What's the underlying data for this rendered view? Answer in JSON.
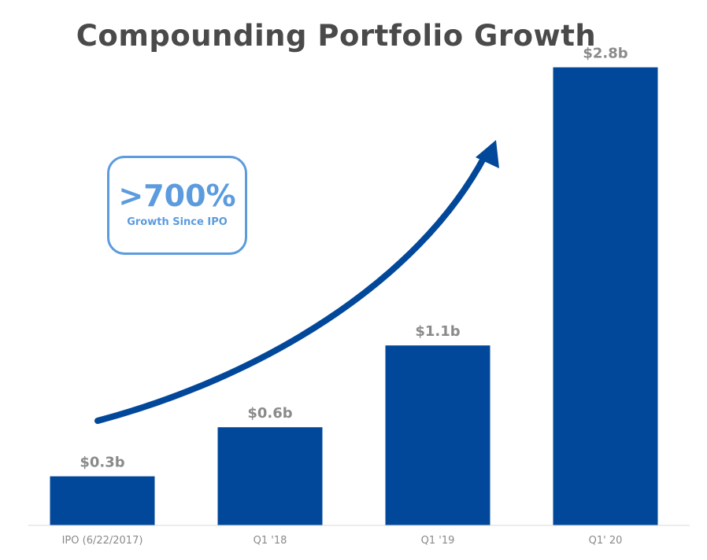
{
  "chart_data": {
    "type": "bar",
    "title": "Compounding Portfolio Growth",
    "categories": [
      "IPO (6/22/2017)",
      "Q1 '18",
      "Q1 '19",
      "Q1' 20"
    ],
    "values": [
      0.3,
      0.6,
      1.1,
      2.8
    ],
    "value_labels": [
      "$0.3b",
      "$0.6b",
      "$1.1b",
      "$2.8b"
    ],
    "ylim": [
      0,
      3.0
    ],
    "grid": false,
    "bar_color": "#02489a",
    "annotation": {
      "value": ">700%",
      "caption": "Growth Since IPO",
      "color": "#5b9bde"
    },
    "trend_arrow_color": "#02489a"
  }
}
